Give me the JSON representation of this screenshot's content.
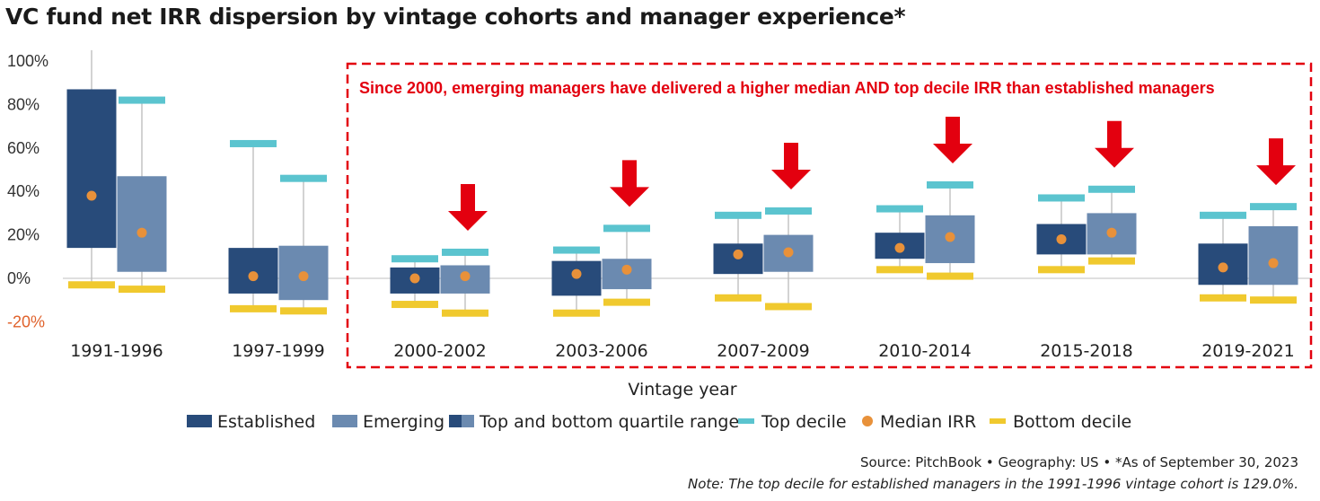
{
  "title": "VC fund net IRR dispersion by vintage cohorts and manager experience*",
  "annotation": "Since 2000, emerging managers have delivered a higher median AND top decile IRR than established managers",
  "source": "Source: PitchBook • Geography: US • *As of September 30, 2023",
  "note": "Note: The top decile for established managers in the 1991-1996 vintage cohort is 129.0%.",
  "colors": {
    "established": "#284b7a",
    "emerging": "#6b8ab0",
    "top_decile": "#5bc4cf",
    "median": "#e8913a",
    "bottom_decile": "#f0c92e",
    "annotation": "#e3000f",
    "whisker": "#bbbbbb"
  },
  "chart_data": {
    "type": "boxplot",
    "xlabel": "Vintage year",
    "ylabel": "",
    "ylim": [
      -20,
      100
    ],
    "yticks": [
      100,
      80,
      60,
      40,
      20,
      0,
      -20
    ],
    "ytick_labels": [
      "100%",
      "80%",
      "60%",
      "40%",
      "20%",
      "0%",
      "-20%"
    ],
    "categories": [
      "1991-1996",
      "1997-1999",
      "2000-2002",
      "2003-2006",
      "2007-2009",
      "2010-2014",
      "2015-2018",
      "2019-2021"
    ],
    "legend": [
      "Established",
      "Emerging",
      "Top and bottom quartile range",
      "Top decile",
      "Median IRR",
      "Bottom decile"
    ],
    "series": [
      {
        "name": "Established",
        "top_decile": [
          129.0,
          62,
          9,
          13,
          29,
          32,
          37,
          29
        ],
        "upper_quartile": [
          87,
          14,
          5,
          8,
          16,
          21,
          25,
          16
        ],
        "median": [
          38,
          1,
          0,
          2,
          11,
          14,
          18,
          5
        ],
        "lower_quartile": [
          14,
          -7,
          -7,
          -8,
          2,
          9,
          11,
          -3
        ],
        "bottom_decile": [
          -3,
          -14,
          -12,
          -16,
          -9,
          4,
          4,
          -9
        ]
      },
      {
        "name": "Emerging",
        "top_decile": [
          82,
          46,
          12,
          23,
          31,
          43,
          41,
          33
        ],
        "upper_quartile": [
          47,
          15,
          6,
          9,
          20,
          29,
          30,
          24
        ],
        "median": [
          21,
          1,
          1,
          4,
          12,
          19,
          21,
          7
        ],
        "lower_quartile": [
          3,
          -10,
          -7,
          -5,
          3,
          7,
          11,
          -3
        ],
        "bottom_decile": [
          -5,
          -15,
          -16,
          -11,
          -13,
          1,
          8,
          -10
        ]
      }
    ],
    "highlighted_categories": [
      "2000-2002",
      "2003-2006",
      "2007-2009",
      "2010-2014",
      "2015-2018",
      "2019-2021"
    ],
    "grid": false,
    "legend_position": "bottom"
  }
}
